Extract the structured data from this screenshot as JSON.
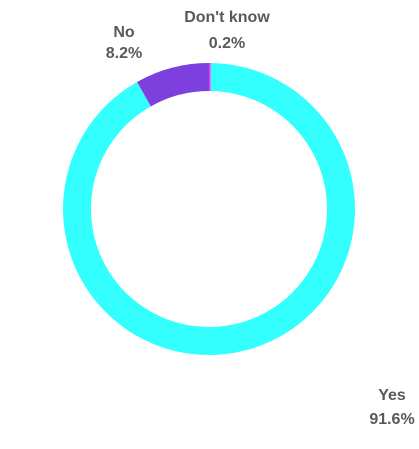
{
  "chart_data": {
    "type": "pie",
    "style": "donut",
    "title": "",
    "slices": [
      {
        "category": "Yes",
        "value": 91.6,
        "value_label": "91.6%",
        "color": "#33ffff"
      },
      {
        "category": "Don't know",
        "value": 0.2,
        "value_label": "0.2%",
        "color": "#ff33ff"
      },
      {
        "category": "No",
        "value": 8.2,
        "value_label": "8.2%",
        "color": "#7d3fdd"
      }
    ],
    "legend": "none"
  }
}
